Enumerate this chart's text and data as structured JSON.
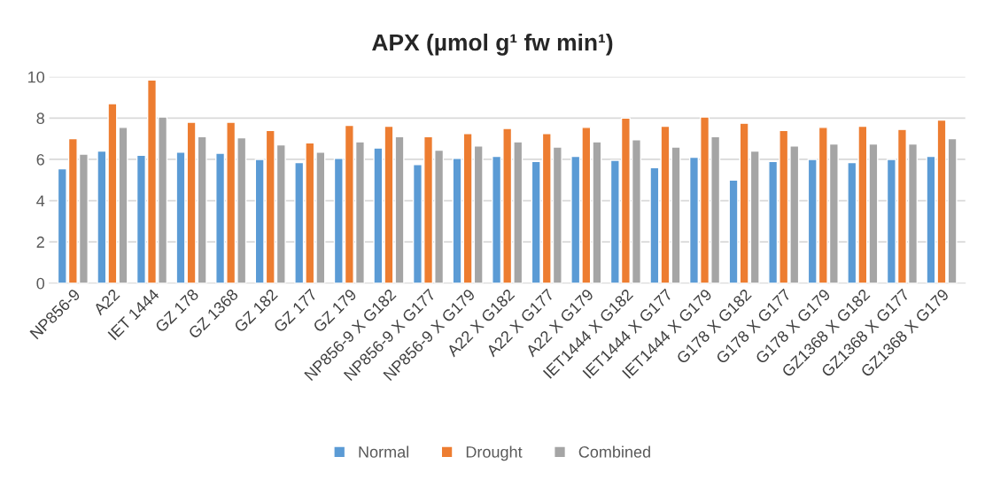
{
  "chart_data": {
    "type": "bar",
    "title": "APX (µmol g¹ fw min¹)",
    "categories": [
      "NP856-9",
      "A22",
      "IET 1444",
      "GZ 178",
      "GZ 1368",
      "GZ 182",
      "GZ 177",
      "GZ 179",
      "NP856-9 X G182",
      "NP856-9 X G177",
      "NP856-9 X G179",
      "A22 X G182",
      "A22 X G177",
      "A22 X G179",
      "IET1444 X G182",
      "IET1444 X G177",
      "IET1444 X G179",
      "G178 X G182",
      "G178 X G177",
      "G178 X G179",
      "GZ1368 X G182",
      "GZ1368 X G177",
      "GZ1368 X G179"
    ],
    "series": [
      {
        "name": "Normal",
        "color": "#5b9bd5",
        "values": [
          5.55,
          6.4,
          6.2,
          6.35,
          6.3,
          6.0,
          5.85,
          6.05,
          6.55,
          5.75,
          6.05,
          6.15,
          5.9,
          6.15,
          5.95,
          5.6,
          6.1,
          5.0,
          5.9,
          6.0,
          5.85,
          6.0,
          6.15
        ]
      },
      {
        "name": "Drought",
        "color": "#ed7d31",
        "values": [
          7.0,
          8.7,
          9.85,
          7.8,
          7.8,
          7.4,
          6.8,
          7.65,
          7.6,
          7.1,
          7.25,
          7.5,
          7.25,
          7.55,
          8.0,
          7.6,
          8.05,
          7.75,
          7.4,
          7.55,
          7.6,
          7.45,
          7.9
        ]
      },
      {
        "name": "Combined",
        "color": "#a5a5a5",
        "values": [
          6.25,
          7.55,
          8.05,
          7.1,
          7.05,
          6.7,
          6.35,
          6.85,
          7.1,
          6.45,
          6.65,
          6.85,
          6.6,
          6.85,
          6.95,
          6.6,
          7.1,
          6.4,
          6.65,
          6.75,
          6.75,
          6.75,
          7.0
        ]
      }
    ],
    "ylim": [
      0,
      10
    ],
    "yticks": [
      0,
      2,
      4,
      6,
      8,
      10
    ],
    "grid": "y",
    "legend": "bottom"
  }
}
